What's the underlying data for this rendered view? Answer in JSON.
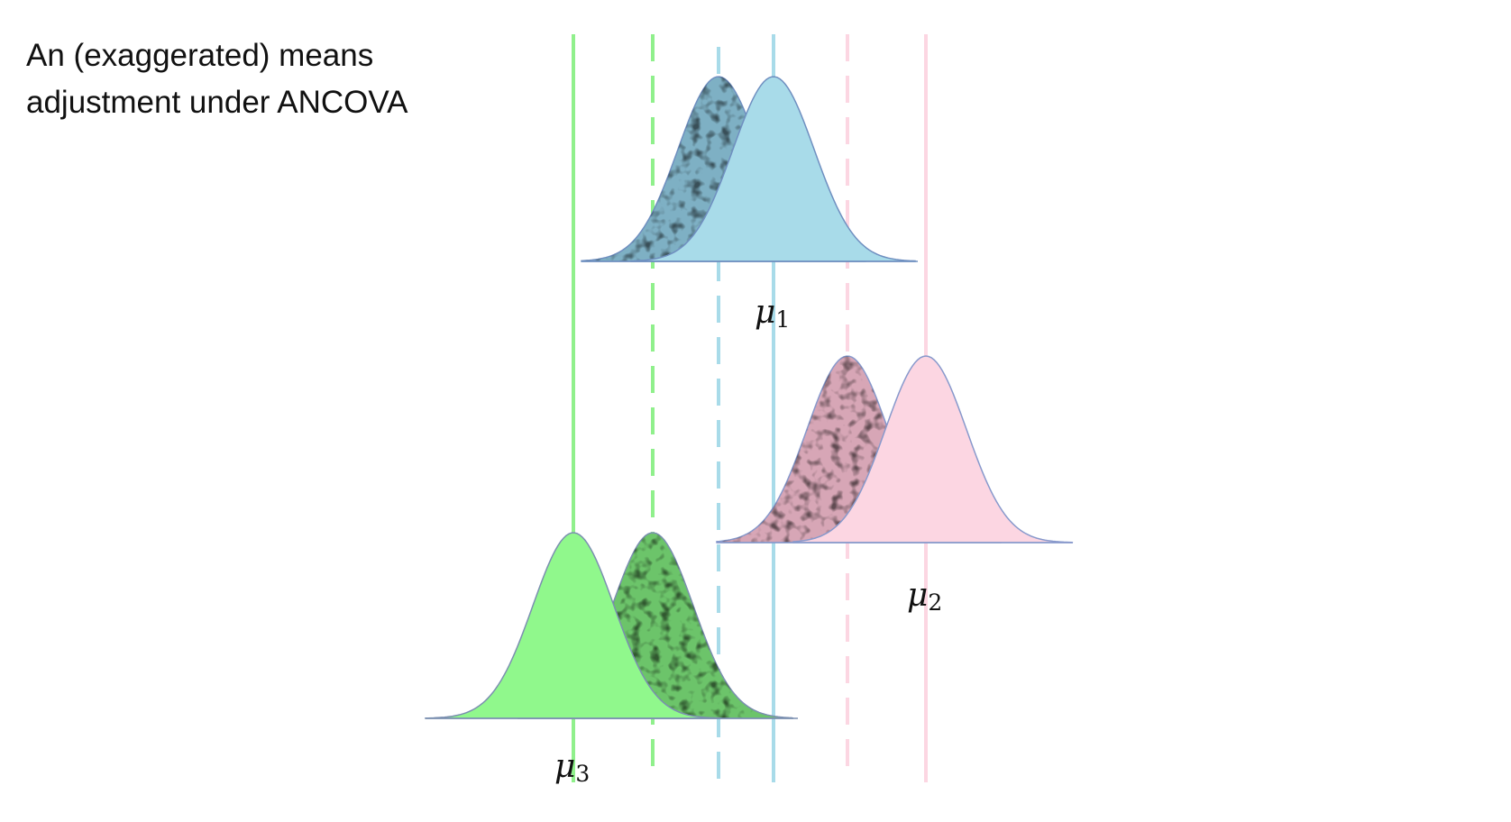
{
  "title": {
    "line1": "An (exaggerated) means",
    "line2": "adjustment under ANCOVA"
  },
  "groups": [
    {
      "id": "group-1",
      "mu": "μ",
      "sub": "1",
      "color": "#a8dbe9",
      "shade_color": "#7eb0c4",
      "outline_color": "#6f8fc0"
    },
    {
      "id": "group-2",
      "mu": "μ",
      "sub": "2",
      "color": "#fcd6e2",
      "shade_color": "#d7a6b6",
      "outline_color": "#8899cc"
    },
    {
      "id": "group-3",
      "mu": "μ",
      "sub": "3",
      "color": "#90f88c",
      "shade_color": "#6cc46a",
      "outline_color": "#7b8fb0"
    }
  ]
}
